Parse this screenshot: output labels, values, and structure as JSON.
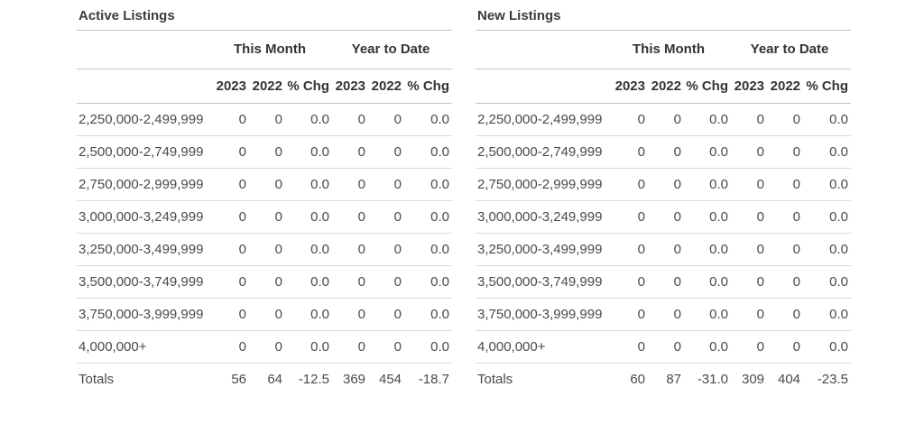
{
  "colors": {
    "background": "#ffffff",
    "header_text": "#333333",
    "data_text": "#4a4a4a",
    "header_line": "#c6c6c6",
    "row_line": "#d9d9d9"
  },
  "tables": [
    {
      "title": "Active Listings",
      "group_headers": [
        "This Month",
        "Year to Date"
      ],
      "col_headers": [
        "2023",
        "2022",
        "% Chg",
        "2023",
        "2022",
        "% Chg"
      ],
      "rows": [
        {
          "label": "2,250,000-2,499,999",
          "values": [
            "0",
            "0",
            "0.0",
            "0",
            "0",
            "0.0"
          ]
        },
        {
          "label": "2,500,000-2,749,999",
          "values": [
            "0",
            "0",
            "0.0",
            "0",
            "0",
            "0.0"
          ]
        },
        {
          "label": "2,750,000-2,999,999",
          "values": [
            "0",
            "0",
            "0.0",
            "0",
            "0",
            "0.0"
          ]
        },
        {
          "label": "3,000,000-3,249,999",
          "values": [
            "0",
            "0",
            "0.0",
            "0",
            "0",
            "0.0"
          ]
        },
        {
          "label": "3,250,000-3,499,999",
          "values": [
            "0",
            "0",
            "0.0",
            "0",
            "0",
            "0.0"
          ]
        },
        {
          "label": "3,500,000-3,749,999",
          "values": [
            "0",
            "0",
            "0.0",
            "0",
            "0",
            "0.0"
          ]
        },
        {
          "label": "3,750,000-3,999,999",
          "values": [
            "0",
            "0",
            "0.0",
            "0",
            "0",
            "0.0"
          ]
        },
        {
          "label": "4,000,000+",
          "values": [
            "0",
            "0",
            "0.0",
            "0",
            "0",
            "0.0"
          ]
        }
      ],
      "totals": {
        "label": "Totals",
        "values": [
          "56",
          "64",
          "-12.5",
          "369",
          "454",
          "-18.7"
        ]
      }
    },
    {
      "title": "New Listings",
      "group_headers": [
        "This Month",
        "Year to Date"
      ],
      "col_headers": [
        "2023",
        "2022",
        "% Chg",
        "2023",
        "2022",
        "% Chg"
      ],
      "rows": [
        {
          "label": "2,250,000-2,499,999",
          "values": [
            "0",
            "0",
            "0.0",
            "0",
            "0",
            "0.0"
          ]
        },
        {
          "label": "2,500,000-2,749,999",
          "values": [
            "0",
            "0",
            "0.0",
            "0",
            "0",
            "0.0"
          ]
        },
        {
          "label": "2,750,000-2,999,999",
          "values": [
            "0",
            "0",
            "0.0",
            "0",
            "0",
            "0.0"
          ]
        },
        {
          "label": "3,000,000-3,249,999",
          "values": [
            "0",
            "0",
            "0.0",
            "0",
            "0",
            "0.0"
          ]
        },
        {
          "label": "3,250,000-3,499,999",
          "values": [
            "0",
            "0",
            "0.0",
            "0",
            "0",
            "0.0"
          ]
        },
        {
          "label": "3,500,000-3,749,999",
          "values": [
            "0",
            "0",
            "0.0",
            "0",
            "0",
            "0.0"
          ]
        },
        {
          "label": "3,750,000-3,999,999",
          "values": [
            "0",
            "0",
            "0.0",
            "0",
            "0",
            "0.0"
          ]
        },
        {
          "label": "4,000,000+",
          "values": [
            "0",
            "0",
            "0.0",
            "0",
            "0",
            "0.0"
          ]
        }
      ],
      "totals": {
        "label": "Totals",
        "values": [
          "60",
          "87",
          "-31.0",
          "309",
          "404",
          "-23.5"
        ]
      }
    }
  ]
}
